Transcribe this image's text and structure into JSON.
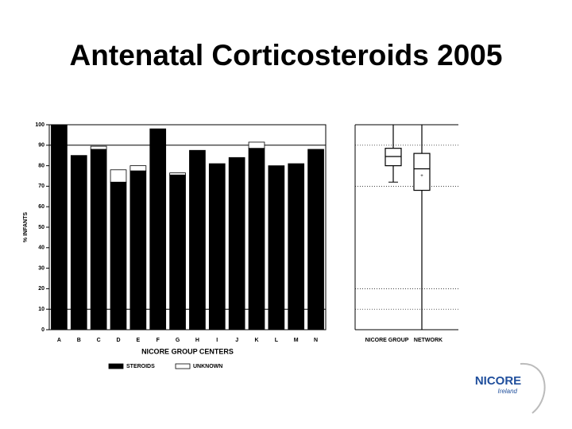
{
  "title": "Antenatal Corticosteroids 2005",
  "logo": {
    "text": "NICORE",
    "subtext": "Ireland"
  },
  "chart_data": [
    {
      "type": "bar",
      "stacked": true,
      "categories": [
        "A",
        "B",
        "C",
        "D",
        "E",
        "F",
        "G",
        "H",
        "I",
        "J",
        "K",
        "L",
        "M",
        "N"
      ],
      "series": [
        {
          "name": "STEROIDS",
          "color": "#000000",
          "values": [
            100,
            85,
            88,
            72,
            77.5,
            98,
            75.5,
            87.5,
            81,
            84,
            88.5,
            80,
            81,
            88
          ]
        },
        {
          "name": "UNKNOWN",
          "color": "#ffffff",
          "values": [
            0,
            0,
            1.5,
            6,
            2.5,
            0,
            1,
            0,
            0,
            0,
            3,
            0,
            0,
            0
          ]
        }
      ],
      "ylim": [
        0,
        100
      ],
      "yticks": [
        0,
        10,
        20,
        30,
        40,
        50,
        60,
        70,
        80,
        90,
        100
      ],
      "ref_lines": [
        10,
        90
      ],
      "x_label": "NICORE GROUP CENTERS",
      "y_label": "% INFANTS"
    },
    {
      "type": "box",
      "categories": [
        "NICORE GROUP",
        "NETWORK"
      ],
      "boxes": [
        {
          "min": 72,
          "q1": 80,
          "median": 84.5,
          "q3": 88.5,
          "max": 100
        },
        {
          "min": 0,
          "q1": 68,
          "median": 78.5,
          "q3": 86,
          "max": 100,
          "mean": 75
        }
      ],
      "ylim": [
        0,
        100
      ],
      "ref_lines": [
        10,
        20,
        70,
        90
      ]
    }
  ]
}
